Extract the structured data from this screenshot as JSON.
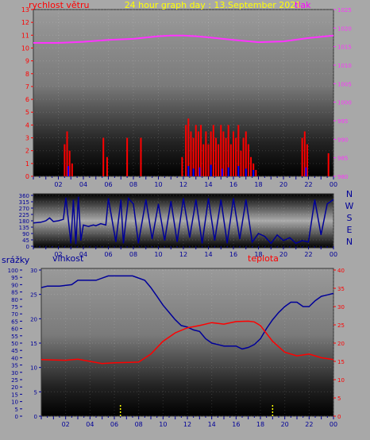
{
  "title": "24 hour graph day : 13.September 2021",
  "colors": {
    "wind": "#ff0000",
    "gust": "#0000ff",
    "pressure": "#ff33ff",
    "direction": "#000099",
    "humidity": "#000099",
    "temperature": "#ff0000",
    "rain": "#ffff00",
    "title": "#ffff00",
    "tick": "#000099"
  },
  "chart_data": [
    {
      "type": "line",
      "labels": {
        "left": "rychlost větru",
        "right": "tlak"
      },
      "x_ticks": [
        "02",
        "04",
        "06",
        "08",
        "10",
        "12",
        "14",
        "16",
        "18",
        "20",
        "22",
        "00"
      ],
      "y_left": {
        "ylim": [
          0,
          13
        ],
        "ticks": [
          "0",
          "1",
          "2",
          "3",
          "4",
          "5",
          "6",
          "7",
          "8",
          "9",
          "10",
          "11",
          "12",
          "13"
        ]
      },
      "y_right": {
        "ylim": [
          980,
          1025
        ],
        "ticks": [
          "980",
          "985",
          "990",
          "995",
          "1000",
          "1005",
          "1010",
          "1015",
          "1020",
          "1025"
        ]
      },
      "series": [
        {
          "role": "pressure",
          "axis": "right",
          "x": [
            0,
            2,
            4,
            6,
            8,
            10,
            11,
            12,
            13,
            14,
            16,
            18,
            20,
            22,
            24
          ],
          "y": [
            1016,
            1016,
            1016.3,
            1016.8,
            1017.1,
            1017.8,
            1018,
            1018,
            1017.8,
            1017.5,
            1016.8,
            1016.2,
            1016.4,
            1017.3,
            1018
          ]
        },
        {
          "role": "wind",
          "axis": "left",
          "style": "bars",
          "x": [
            2.5,
            2.7,
            2.9,
            3.1,
            5.6,
            5.9,
            7.5,
            8.6,
            11.9,
            12.2,
            12.4,
            12.6,
            12.8,
            13.0,
            13.2,
            13.4,
            13.6,
            13.8,
            14.0,
            14.2,
            14.4,
            14.6,
            14.8,
            15.0,
            15.2,
            15.4,
            15.6,
            15.8,
            16.0,
            16.2,
            16.4,
            16.6,
            16.8,
            17.0,
            17.2,
            17.4,
            17.6,
            17.8,
            21.5,
            21.7,
            21.9,
            23.6
          ],
          "y": [
            2.5,
            3.5,
            2.0,
            1.0,
            3.0,
            1.5,
            3.0,
            3.0,
            1.5,
            4.0,
            4.5,
            3.5,
            3.0,
            4.0,
            3.5,
            4.0,
            2.5,
            3.5,
            2.5,
            3.5,
            4.0,
            3.0,
            2.5,
            4.0,
            3.5,
            3.0,
            4.0,
            2.5,
            3.5,
            3.0,
            4.0,
            2.0,
            3.0,
            3.5,
            2.5,
            1.5,
            1.0,
            0.5,
            3.0,
            3.5,
            2.5,
            1.8
          ]
        },
        {
          "role": "gust",
          "axis": "left",
          "style": "bars",
          "x": [
            2.8,
            12.4,
            12.8,
            13.3,
            14.2,
            15.1,
            15.6,
            16.4,
            17.0,
            17.6,
            21.8
          ],
          "y": [
            0.8,
            0.8,
            0.6,
            0.7,
            0.9,
            0.6,
            0.7,
            0.8,
            0.6,
            0.5,
            0.7
          ]
        }
      ]
    },
    {
      "type": "line",
      "x_ticks": [
        "02",
        "04",
        "06",
        "08",
        "10",
        "12",
        "14",
        "16",
        "18",
        "20",
        "22",
        "00"
      ],
      "y_left": {
        "ylim": [
          0,
          360
        ],
        "ticks": [
          "0",
          "45",
          "90",
          "135",
          "180",
          "225",
          "270",
          "315",
          "360"
        ]
      },
      "compass": [
        "N",
        "W",
        "S",
        "E",
        "N"
      ],
      "series": [
        {
          "role": "direction",
          "axis": "left",
          "x": [
            0,
            0.6,
            1.0,
            1.3,
            1.6,
            2.0,
            2.4,
            2.6,
            3.0,
            3.2,
            3.4,
            3.6,
            3.8,
            4.0,
            4.4,
            4.8,
            5.0,
            5.4,
            5.8,
            6.0,
            6.6,
            7.0,
            7.2,
            7.6,
            8.0,
            8.4,
            9.0,
            9.5,
            10.0,
            10.5,
            11.0,
            11.5,
            12.0,
            12.5,
            13.0,
            13.5,
            14.0,
            14.5,
            15.0,
            15.5,
            16.0,
            16.5,
            17.0,
            17.5,
            18.0,
            18.5,
            19.0,
            19.5,
            20.0,
            20.5,
            21.0,
            21.5,
            22.0,
            22.5,
            23.0,
            23.5,
            24.0
          ],
          "y": [
            165,
            170,
            180,
            200,
            175,
            180,
            190,
            345,
            20,
            330,
            15,
            350,
            40,
            150,
            140,
            150,
            145,
            160,
            150,
            340,
            30,
            330,
            20,
            340,
            300,
            20,
            330,
            50,
            300,
            40,
            320,
            30,
            340,
            60,
            330,
            20,
            340,
            40,
            330,
            20,
            340,
            50,
            330,
            30,
            90,
            70,
            20,
            80,
            40,
            60,
            20,
            40,
            30,
            330,
            80,
            300,
            330
          ]
        }
      ]
    },
    {
      "type": "line",
      "labels": {
        "rain": "srážky",
        "humidity": "vlhkost",
        "temperature": "teplota"
      },
      "x_ticks": [
        "02",
        "04",
        "06",
        "08",
        "10",
        "12",
        "14",
        "16",
        "18",
        "20",
        "22",
        "00"
      ],
      "y_rain": {
        "ylim": [
          0,
          100
        ],
        "ticks": [
          "0",
          "5",
          "10",
          "15",
          "20",
          "25",
          "30",
          "35",
          "40",
          "45",
          "50",
          "55",
          "60",
          "65",
          "70",
          "75",
          "80",
          "85",
          "90",
          "95",
          "100"
        ]
      },
      "y_left": {
        "ylim": [
          0,
          30
        ],
        "ticks": [
          "0",
          "5",
          "10",
          "15",
          "20",
          "25",
          "30"
        ]
      },
      "y_right": {
        "ylim": [
          0,
          40
        ],
        "ticks": [
          "0",
          "5",
          "10",
          "15",
          "20",
          "25",
          "30",
          "35",
          "40"
        ]
      },
      "series": [
        {
          "role": "humidity",
          "axis": "rain",
          "x": [
            0,
            0.5,
            1.5,
            2.5,
            3.0,
            3.5,
            4.5,
            5.5,
            6.5,
            7.5,
            8.5,
            9.0,
            9.5,
            10.0,
            10.5,
            11.0,
            11.5,
            12.0,
            12.5,
            13.0,
            13.5,
            14.0,
            14.5,
            15.0,
            15.5,
            16.0,
            16.5,
            17.0,
            17.5,
            18.0,
            18.5,
            19.0,
            19.5,
            20.0,
            20.5,
            21.0,
            21.5,
            22.0,
            22.5,
            23.0,
            23.5,
            24.0
          ],
          "y": [
            88,
            89,
            89,
            90,
            93,
            93,
            93,
            96,
            96,
            96,
            93,
            88,
            82,
            76,
            71,
            66,
            62,
            61,
            59,
            58,
            53,
            50,
            49,
            48,
            48,
            48,
            46,
            47,
            49,
            53,
            60,
            66,
            71,
            75,
            78,
            78,
            75,
            75,
            79,
            82,
            83,
            84
          ]
        },
        {
          "role": "temperature",
          "axis": "right",
          "x": [
            0,
            1,
            2,
            3,
            4,
            5,
            6,
            7,
            8,
            9,
            10,
            11,
            12,
            13,
            14,
            15,
            16,
            17,
            17.5,
            18,
            19,
            20,
            21,
            22,
            23,
            24
          ],
          "y": [
            15.5,
            15.4,
            15.3,
            15.6,
            15.0,
            14.4,
            14.6,
            14.7,
            14.8,
            17.0,
            20.5,
            22.8,
            24.2,
            24.8,
            25.6,
            25.2,
            25.9,
            26.0,
            25.8,
            24.8,
            20.5,
            17.5,
            16.5,
            17.0,
            16.0,
            15.5
          ]
        },
        {
          "role": "rain",
          "axis": "rain",
          "style": "bars",
          "x": [
            6.5,
            19.0
          ],
          "y": [
            4,
            4
          ]
        }
      ]
    }
  ]
}
